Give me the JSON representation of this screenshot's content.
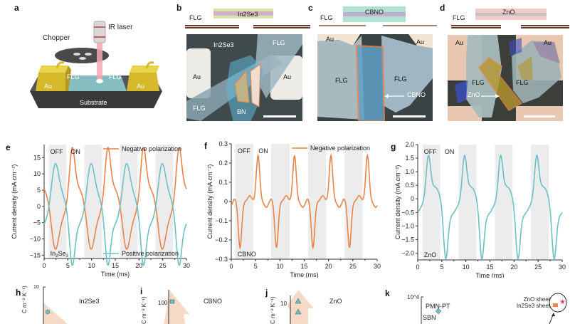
{
  "figure": {
    "panels": {
      "a": {
        "letter": "a",
        "labels": {
          "ir_laser": "IR laser",
          "chopper": "Chopper",
          "flg_left": "FLG",
          "flg_right": "FLG",
          "au_left": "Au",
          "au_right": "Au",
          "substrate": "Substrate"
        }
      },
      "b": {
        "letter": "b",
        "schematic": {
          "flg": "FLG",
          "material": "In2Se3"
        },
        "photo": {
          "material_arrow": "In2Se3",
          "au_left": "Au",
          "au_right": "Au",
          "flg_top": "FLG",
          "flg_bottom": "FLG",
          "bn": "BN"
        }
      },
      "c": {
        "letter": "c",
        "schematic": {
          "flg": "FLG",
          "material": "CBNO"
        },
        "photo": {
          "au_left": "Au",
          "au_right": "Au",
          "flg_left": "FLG",
          "flg_right": "FLG",
          "material_arrow": "CBNO"
        }
      },
      "d": {
        "letter": "d",
        "schematic": {
          "flg": "FLG",
          "material": "ZnO"
        },
        "photo": {
          "au_left": "Au",
          "au_right": "Au",
          "flg_left": "FLG",
          "flg_right": "FLG",
          "material_arrow": "ZnO"
        }
      },
      "h": {
        "letter": "h",
        "material": "In2Se3",
        "ytick_top": "10"
      },
      "i": {
        "letter": "i",
        "material": "CBNO",
        "ytick": "100"
      },
      "j": {
        "letter": "j",
        "material": "ZnO",
        "ytick": "10"
      },
      "k": {
        "letter": "k",
        "ytick_top": "10^4",
        "labels": {
          "pmnpt": "PMN-PT",
          "sbn": "SBN",
          "zno_sheet": "ZnO sheet",
          "in2se3_sheet": "In2Se3 sheet"
        }
      },
      "ylabel_partial": "C m⁻² K⁻¹)"
    },
    "colors": {
      "orange": "#e8844a",
      "teal": "#6cc0c4",
      "gray_band": "#ececec",
      "au_gold": "#d6b92a",
      "cone": "#f6d9c6"
    }
  },
  "chart_data": [
    {
      "panel": "e",
      "type": "line",
      "title": "",
      "xlabel": "Time (ms)",
      "ylabel": "Current density (mA cm⁻²)",
      "xlim": [
        0,
        30
      ],
      "ylim": [
        -16,
        19
      ],
      "xticks": [
        0,
        5,
        10,
        15,
        20,
        25,
        30
      ],
      "yticks": [
        -15,
        -10,
        -5,
        0,
        5,
        10,
        15
      ],
      "annotations": [
        "OFF",
        "ON",
        "In2Se3"
      ],
      "off_bands_ms": [
        [
          1,
          4.7
        ],
        [
          8.5,
          12.2
        ],
        [
          16,
          19.7
        ],
        [
          23.5,
          27.2
        ]
      ],
      "legend": [
        "Negative polarization",
        "Positive polarization"
      ],
      "series": [
        {
          "name": "Negative polarization",
          "color": "#e8844a",
          "peak": 14.8,
          "trough": -12.3,
          "peaks_ms": [
            5.8,
            13.3,
            20.8,
            28.3
          ],
          "troughs_ms": [
            2.3,
            9.8,
            17.3,
            24.8
          ]
        },
        {
          "name": "Positive polarization",
          "color": "#6cc0c4",
          "peak": 11.9,
          "trough": -11.5,
          "peaks_ms": [
            2.3,
            9.8,
            17.3,
            24.8
          ],
          "troughs_ms": [
            5.8,
            13.3,
            20.8,
            28.3
          ]
        }
      ]
    },
    {
      "panel": "f",
      "type": "line",
      "xlabel": "Time (ms)",
      "ylabel": "Current density (mA cm⁻²)",
      "xlim": [
        0,
        30
      ],
      "ylim": [
        -0.3,
        0.3
      ],
      "xticks": [
        0,
        5,
        10,
        15,
        20,
        25,
        30
      ],
      "yticks": [
        -0.3,
        -0.2,
        -0.1,
        0,
        0.1,
        0.2,
        0.3
      ],
      "annotations": [
        "OFF",
        "ON",
        "CBNO"
      ],
      "off_bands_ms": [
        [
          0.8,
          4.5
        ],
        [
          8.2,
          12
        ],
        [
          15.8,
          19.5
        ],
        [
          23.3,
          27
        ]
      ],
      "legend": [
        "Negative polarization"
      ],
      "series": [
        {
          "name": "Negative polarization",
          "color": "#e8844a",
          "peak": 0.23,
          "trough": -0.23,
          "peaks_ms": [
            5.5,
            13,
            20.5,
            28
          ],
          "troughs_ms": [
            1.8,
            9.3,
            16.8,
            24.3
          ]
        }
      ]
    },
    {
      "panel": "g",
      "type": "line",
      "xlabel": "Time (ms)",
      "ylabel": "Current density (mA cm⁻²)",
      "xlim": [
        0,
        30
      ],
      "ylim": [
        -2.25,
        2.0
      ],
      "xticks": [
        0,
        5,
        10,
        15,
        20,
        25,
        30
      ],
      "yticks": [
        -2.0,
        -1.5,
        -1.0,
        -0.5,
        0,
        0.5,
        1.0,
        1.5,
        2.0
      ],
      "annotations": [
        "OFF",
        "ON",
        "ZnO"
      ],
      "off_bands_ms": [
        [
          1,
          4.7
        ],
        [
          8.5,
          12.2
        ],
        [
          16,
          19.7
        ],
        [
          23.5,
          27.2
        ]
      ],
      "series": [
        {
          "name": "Positive polarization",
          "color": "#6cc0c4",
          "peak": 1.6,
          "trough": -1.75,
          "peaks_ms": [
            2.2,
            9.7,
            17.2,
            24.7
          ],
          "troughs_ms": [
            5.8,
            13.3,
            20.8,
            28.3
          ]
        }
      ]
    }
  ]
}
